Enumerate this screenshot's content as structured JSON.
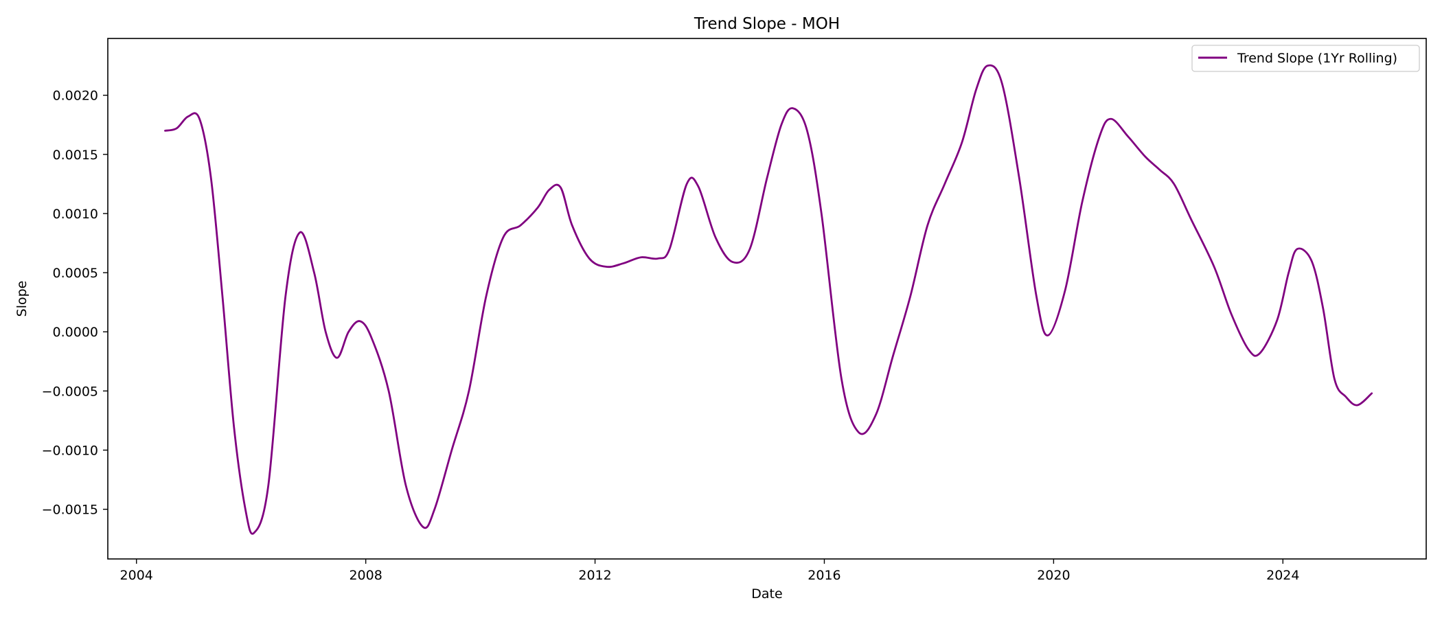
{
  "chart_data": {
    "type": "line",
    "title": "Trend Slope - MOH",
    "xlabel": "Date",
    "ylabel": "Slope",
    "xlim": [
      2003.5,
      2026.5
    ],
    "ylim": [
      -0.00192,
      0.00248
    ],
    "x_ticks": [
      2004,
      2008,
      2012,
      2016,
      2020,
      2024
    ],
    "x_tick_labels": [
      "2004",
      "2008",
      "2012",
      "2016",
      "2020",
      "2024"
    ],
    "y_ticks": [
      -0.0015,
      -0.001,
      -0.0005,
      0.0,
      0.0005,
      0.001,
      0.0015,
      0.002
    ],
    "y_tick_labels": [
      "−0.0015",
      "−0.0010",
      "−0.0005",
      "0.0000",
      "0.0005",
      "0.0010",
      "0.0015",
      "0.0020"
    ],
    "grid": false,
    "legend_position": "top-right",
    "series": [
      {
        "name": "Trend Slope (1Yr Rolling)",
        "color": "#800080",
        "x": [
          2004.5,
          2004.7,
          2004.9,
          2005.1,
          2005.3,
          2005.5,
          2005.7,
          2005.9,
          2006.05,
          2006.3,
          2006.6,
          2006.85,
          2007.1,
          2007.3,
          2007.5,
          2007.7,
          2007.9,
          2008.1,
          2008.4,
          2008.7,
          2009.0,
          2009.2,
          2009.5,
          2009.8,
          2010.1,
          2010.4,
          2010.7,
          2011.0,
          2011.2,
          2011.4,
          2011.6,
          2011.9,
          2012.2,
          2012.5,
          2012.8,
          2013.1,
          2013.3,
          2013.6,
          2013.8,
          2014.1,
          2014.4,
          2014.7,
          2015.0,
          2015.25,
          2015.45,
          2015.7,
          2015.95,
          2016.3,
          2016.6,
          2016.9,
          2017.2,
          2017.5,
          2017.8,
          2018.1,
          2018.4,
          2018.65,
          2018.85,
          2019.1,
          2019.4,
          2019.7,
          2019.9,
          2020.2,
          2020.5,
          2020.8,
          2021.0,
          2021.3,
          2021.6,
          2021.85,
          2022.1,
          2022.4,
          2022.8,
          2023.1,
          2023.4,
          2023.6,
          2023.9,
          2024.1,
          2024.25,
          2024.5,
          2024.7,
          2024.9,
          2025.1,
          2025.3,
          2025.55
        ],
        "y": [
          0.0017,
          0.00172,
          0.00182,
          0.0018,
          0.0013,
          0.0003,
          -0.0008,
          -0.0015,
          -0.0017,
          -0.0013,
          0.0003,
          0.00084,
          0.0005,
          0.0,
          -0.00022,
          0.0,
          9e-05,
          -5e-05,
          -0.0005,
          -0.0013,
          -0.00165,
          -0.0015,
          -0.001,
          -0.0005,
          0.0003,
          0.0008,
          0.0009,
          0.00105,
          0.0012,
          0.00122,
          0.0009,
          0.00062,
          0.00055,
          0.00058,
          0.00063,
          0.00062,
          0.0007,
          0.00125,
          0.00123,
          0.0008,
          0.00059,
          0.0007,
          0.0013,
          0.00175,
          0.00189,
          0.0017,
          0.001,
          -0.0004,
          -0.00085,
          -0.0007,
          -0.0002,
          0.0003,
          0.0009,
          0.00125,
          0.0016,
          0.00205,
          0.00225,
          0.0021,
          0.0013,
          0.0003,
          -3e-05,
          0.00035,
          0.0011,
          0.00165,
          0.0018,
          0.00165,
          0.00148,
          0.00137,
          0.00125,
          0.00095,
          0.00055,
          0.00015,
          -0.00015,
          -0.00018,
          0.0001,
          0.0005,
          0.0007,
          0.0006,
          0.0002,
          -0.0004,
          -0.00055,
          -0.00062,
          -0.00052
        ]
      }
    ]
  }
}
